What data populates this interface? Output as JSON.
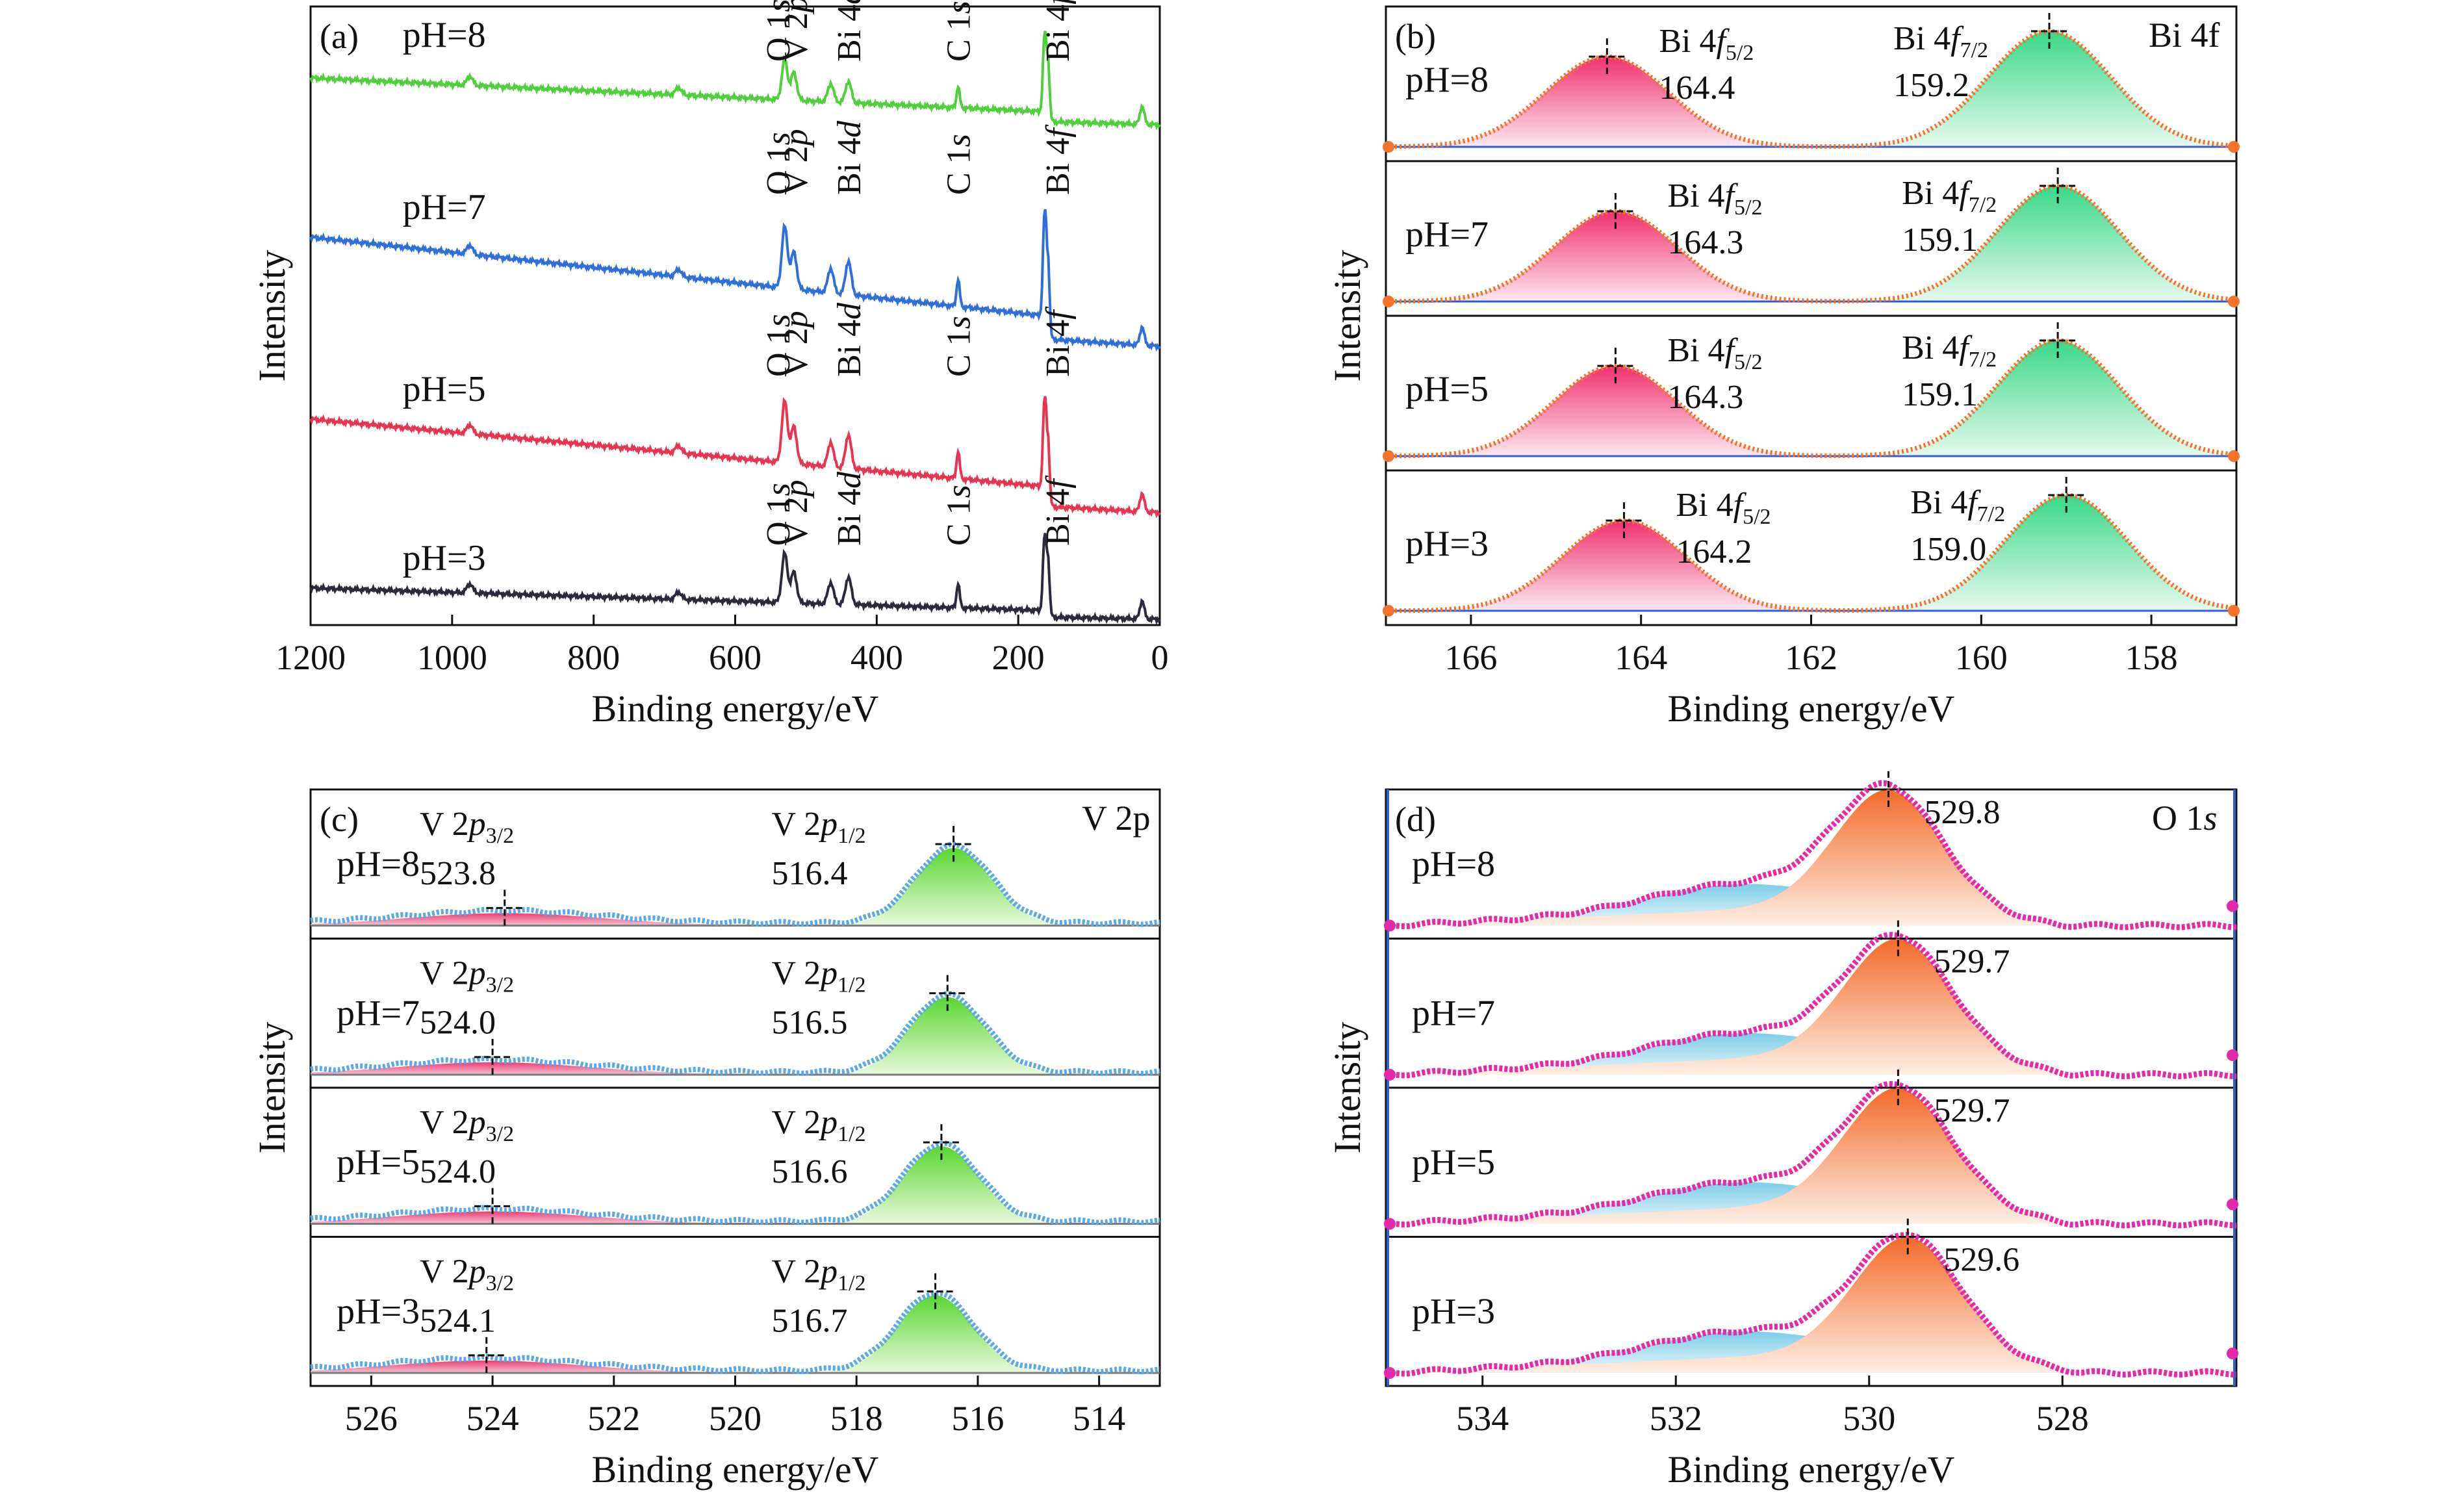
{
  "chart_data": [
    {
      "panel": "(a)",
      "type": "line",
      "xlabel": "Binding energy/eV",
      "ylabel": "Intensity",
      "xlim": [
        1200,
        0
      ],
      "x_ticks": [
        1200,
        1000,
        800,
        600,
        400,
        200,
        0
      ],
      "axis_reversed": true,
      "series": [
        {
          "name": "pH=8",
          "color": "#4fcf3c",
          "peaks": [
            {
              "x": 975,
              "h": 0.15
            },
            {
              "x": 680,
              "h": 0.12
            },
            {
              "x": 530,
              "h": 0.65
            },
            {
              "x": 517,
              "h": 0.45
            },
            {
              "x": 465,
              "h": 0.3
            },
            {
              "x": 440,
              "h": 0.35
            },
            {
              "x": 285,
              "h": 0.35
            },
            {
              "x": 163,
              "h": 1.2
            },
            {
              "x": 158,
              "h": 1.0
            },
            {
              "x": 25,
              "h": 0.3
            }
          ]
        },
        {
          "name": "pH=7",
          "color": "#2f6fdc",
          "peaks": [
            {
              "x": 975,
              "h": 0.15
            },
            {
              "x": 680,
              "h": 0.12
            },
            {
              "x": 530,
              "h": 1.0
            },
            {
              "x": 517,
              "h": 0.6
            },
            {
              "x": 465,
              "h": 0.4
            },
            {
              "x": 440,
              "h": 0.55
            },
            {
              "x": 285,
              "h": 0.45
            },
            {
              "x": 163,
              "h": 1.6
            },
            {
              "x": 158,
              "h": 1.3
            },
            {
              "x": 25,
              "h": 0.3
            }
          ]
        },
        {
          "name": "pH=5",
          "color": "#e8344f",
          "peaks": [
            {
              "x": 975,
              "h": 0.15
            },
            {
              "x": 680,
              "h": 0.12
            },
            {
              "x": 530,
              "h": 1.0
            },
            {
              "x": 517,
              "h": 0.6
            },
            {
              "x": 465,
              "h": 0.4
            },
            {
              "x": 440,
              "h": 0.55
            },
            {
              "x": 285,
              "h": 0.45
            },
            {
              "x": 163,
              "h": 1.35
            },
            {
              "x": 158,
              "h": 1.1
            },
            {
              "x": 25,
              "h": 0.3
            }
          ]
        },
        {
          "name": "pH=3",
          "color": "#2a2a3a",
          "peaks": [
            {
              "x": 975,
              "h": 0.15
            },
            {
              "x": 680,
              "h": 0.12
            },
            {
              "x": 530,
              "h": 0.8
            },
            {
              "x": 517,
              "h": 0.5
            },
            {
              "x": 465,
              "h": 0.35
            },
            {
              "x": 440,
              "h": 0.45
            },
            {
              "x": 285,
              "h": 0.4
            },
            {
              "x": 163,
              "h": 1.15
            },
            {
              "x": 158,
              "h": 0.95
            },
            {
              "x": 25,
              "h": 0.3
            }
          ]
        }
      ],
      "peak_labels": [
        {
          "text": "O 1",
          "italic": "s",
          "x": 540
        },
        {
          "text": "V 2",
          "italic": "p",
          "x": 515
        },
        {
          "text": "Bi 4",
          "italic": "d",
          "x": 440
        },
        {
          "text": "C 1",
          "italic": "s",
          "x": 285
        },
        {
          "text": "Bi 4",
          "italic": "f",
          "x": 145
        }
      ]
    },
    {
      "panel": "(b)",
      "type": "line",
      "title": "Bi 4f",
      "xlabel": "Binding energy/eV",
      "ylabel": "Intensity",
      "xlim": [
        167,
        157
      ],
      "x_ticks": [
        166,
        164,
        162,
        160,
        158
      ],
      "axis_reversed": true,
      "series": [
        {
          "name": "pH=8",
          "peaks": [
            {
              "label": "Bi 4f5/2",
              "x": 164.4
            },
            {
              "label": "Bi 4f7/2",
              "x": 159.2
            }
          ]
        },
        {
          "name": "pH=7",
          "peaks": [
            {
              "label": "Bi 4f5/2",
              "x": 164.3
            },
            {
              "label": "Bi 4f7/2",
              "x": 159.1
            }
          ]
        },
        {
          "name": "pH=5",
          "peaks": [
            {
              "label": "Bi 4f5/2",
              "x": 164.3
            },
            {
              "label": "Bi 4f7/2",
              "x": 159.1
            }
          ]
        },
        {
          "name": "pH=3",
          "peaks": [
            {
              "label": "Bi 4f5/2",
              "x": 164.2
            },
            {
              "label": "Bi 4f7/2",
              "x": 159.0
            }
          ]
        }
      ]
    },
    {
      "panel": "(c)",
      "type": "line",
      "title": "V 2p",
      "xlabel": "Binding energy/eV",
      "ylabel": "Intensity",
      "xlim": [
        527,
        513
      ],
      "x_ticks": [
        526,
        524,
        522,
        520,
        518,
        516,
        514
      ],
      "axis_reversed": true,
      "series": [
        {
          "name": "pH=8",
          "peaks": [
            {
              "label": "V 2p3/2",
              "x": 523.8
            },
            {
              "label": "V 2p1/2",
              "x": 516.4
            }
          ]
        },
        {
          "name": "pH=7",
          "peaks": [
            {
              "label": "V 2p3/2",
              "x": 524.0
            },
            {
              "label": "V 2p1/2",
              "x": 516.5
            }
          ]
        },
        {
          "name": "pH=5",
          "peaks": [
            {
              "label": "V 2p3/2",
              "x": 524.0
            },
            {
              "label": "V 2p1/2",
              "x": 516.6
            }
          ]
        },
        {
          "name": "pH=3",
          "peaks": [
            {
              "label": "V 2p3/2",
              "x": 524.1
            },
            {
              "label": "V 2p1/2",
              "x": 516.7
            }
          ]
        }
      ]
    },
    {
      "panel": "(d)",
      "type": "line",
      "title": "O 1s",
      "xlabel": "Binding energy/eV",
      "ylabel": "Intensity",
      "xlim": [
        535,
        526.2
      ],
      "x_ticks": [
        534,
        532,
        530,
        528
      ],
      "axis_reversed": true,
      "series": [
        {
          "name": "pH=8",
          "peaks": [
            {
              "x": 529.8
            }
          ]
        },
        {
          "name": "pH=7",
          "peaks": [
            {
              "x": 529.7
            }
          ]
        },
        {
          "name": "pH=5",
          "peaks": [
            {
              "x": 529.7
            }
          ]
        },
        {
          "name": "pH=3",
          "peaks": [
            {
              "x": 529.6
            }
          ]
        }
      ]
    }
  ],
  "colors": {
    "bi_left_fill": "#f0306f",
    "bi_right_fill": "#39d888",
    "bi_envelope": "#f4722a",
    "v_left_fill": "#ea3d73",
    "v_right_fill": "#59d630",
    "v_points": "#5aa8e4",
    "o_fill": "#f36a2a",
    "o_points": "#e32aa8",
    "o_shoulder": "#7dcde8",
    "baseline_blue": "#2f5fd0",
    "baseline_gray": "#7a7a7a"
  }
}
